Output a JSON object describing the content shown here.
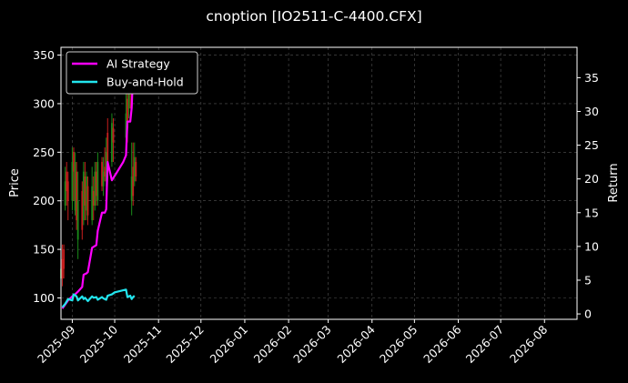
{
  "chart_data": {
    "type": "line",
    "title": "cnoption [IO2511-C-4400.CFX]",
    "xlabel": "",
    "ylabel_left": "Price",
    "ylabel_right": "Return",
    "xlim": [
      "2025-08-24",
      "2026-08-24"
    ],
    "ylim_left": [
      78,
      358
    ],
    "ylim_right": [
      -0.8,
      39.5
    ],
    "x_ticks": [
      "2025-09",
      "2025-10",
      "2025-11",
      "2025-12",
      "2026-01",
      "2026-02",
      "2026-03",
      "2026-04",
      "2026-05",
      "2026-06",
      "2026-07",
      "2026-08"
    ],
    "y_ticks_left": [
      100,
      150,
      200,
      250,
      300,
      350
    ],
    "y_ticks_right": [
      0,
      5,
      10,
      15,
      20,
      25,
      30,
      35
    ],
    "grid": true,
    "legend_position": "top-left",
    "colors": {
      "background": "#000000",
      "grid": "#555555",
      "ai_strategy": "#ff00ff",
      "buy_and_hold": "#22e5ee",
      "candle_up": "#1a8c1a",
      "candle_down": "#c81e1e"
    },
    "series": [
      {
        "name": "AI Strategy",
        "axis": "right",
        "points": [
          [
            "2025-08-25",
            0.8
          ],
          [
            "2025-08-27",
            1.4
          ],
          [
            "2025-08-29",
            2.0
          ],
          [
            "2025-09-01",
            2.6
          ],
          [
            "2025-09-03",
            2.9
          ],
          [
            "2025-09-05",
            3.3
          ],
          [
            "2025-09-08",
            4.0
          ],
          [
            "2025-09-09",
            5.8
          ],
          [
            "2025-09-11",
            6.0
          ],
          [
            "2025-09-12",
            6.2
          ],
          [
            "2025-09-15",
            9.8
          ],
          [
            "2025-09-18",
            10.2
          ],
          [
            "2025-09-19",
            12.3
          ],
          [
            "2025-09-22",
            15.0
          ],
          [
            "2025-09-24",
            15.0
          ],
          [
            "2025-09-25",
            15.5
          ],
          [
            "2025-09-26",
            22.5
          ],
          [
            "2025-09-29",
            19.8
          ],
          [
            "2025-10-02",
            20.8
          ],
          [
            "2025-10-07",
            22.5
          ],
          [
            "2025-10-09",
            23.5
          ],
          [
            "2025-10-10",
            28.5
          ],
          [
            "2025-10-12",
            28.5
          ],
          [
            "2025-10-13",
            30.5
          ],
          [
            "2025-10-14",
            36.0
          ],
          [
            "2025-10-15",
            38.0
          ]
        ]
      },
      {
        "name": "Buy-and-Hold",
        "axis": "right",
        "points": [
          [
            "2025-08-25",
            1.0
          ],
          [
            "2025-08-27",
            1.5
          ],
          [
            "2025-08-29",
            2.2
          ],
          [
            "2025-09-01",
            2.0
          ],
          [
            "2025-09-02",
            2.9
          ],
          [
            "2025-09-04",
            2.6
          ],
          [
            "2025-09-05",
            2.0
          ],
          [
            "2025-09-08",
            2.6
          ],
          [
            "2025-09-09",
            2.2
          ],
          [
            "2025-09-10",
            2.4
          ],
          [
            "2025-09-12",
            1.9
          ],
          [
            "2025-09-15",
            2.6
          ],
          [
            "2025-09-16",
            2.4
          ],
          [
            "2025-09-18",
            2.5
          ],
          [
            "2025-09-19",
            2.1
          ],
          [
            "2025-09-22",
            2.5
          ],
          [
            "2025-09-23",
            2.3
          ],
          [
            "2025-09-25",
            2.1
          ],
          [
            "2025-09-26",
            2.7
          ],
          [
            "2025-09-29",
            2.9
          ],
          [
            "2025-10-01",
            3.2
          ],
          [
            "2025-10-07",
            3.5
          ],
          [
            "2025-10-09",
            3.6
          ],
          [
            "2025-10-10",
            2.5
          ],
          [
            "2025-10-12",
            2.7
          ],
          [
            "2025-10-13",
            2.2
          ],
          [
            "2025-10-14",
            2.5
          ],
          [
            "2025-10-15",
            2.7
          ]
        ]
      }
    ],
    "candles": [
      {
        "date": "2025-08-24",
        "open": 120,
        "close": 130,
        "high": 138,
        "low": 110
      },
      {
        "date": "2025-08-25",
        "open": 140,
        "close": 120,
        "high": 155,
        "low": 112
      },
      {
        "date": "2025-08-26",
        "open": 150,
        "close": 130,
        "high": 155,
        "low": 120
      },
      {
        "date": "2025-08-27",
        "open": 195,
        "close": 220,
        "high": 235,
        "low": 190
      },
      {
        "date": "2025-08-28",
        "open": 230,
        "close": 210,
        "high": 240,
        "low": 195
      },
      {
        "date": "2025-08-29",
        "open": 220,
        "close": 200,
        "high": 230,
        "low": 180
      },
      {
        "date": "2025-09-01",
        "open": 200,
        "close": 240,
        "high": 255,
        "low": 190
      },
      {
        "date": "2025-09-02",
        "open": 250,
        "close": 230,
        "high": 255,
        "low": 200
      },
      {
        "date": "2025-09-03",
        "open": 190,
        "close": 240,
        "high": 250,
        "low": 185
      },
      {
        "date": "2025-09-04",
        "open": 230,
        "close": 180,
        "high": 240,
        "low": 170
      },
      {
        "date": "2025-09-05",
        "open": 160,
        "close": 200,
        "high": 230,
        "low": 140
      },
      {
        "date": "2025-09-08",
        "open": 210,
        "close": 170,
        "high": 220,
        "low": 160
      },
      {
        "date": "2025-09-09",
        "open": 180,
        "close": 230,
        "high": 240,
        "low": 175
      },
      {
        "date": "2025-09-10",
        "open": 225,
        "close": 195,
        "high": 240,
        "low": 180
      },
      {
        "date": "2025-09-11",
        "open": 190,
        "close": 225,
        "high": 230,
        "low": 180
      },
      {
        "date": "2025-09-12",
        "open": 215,
        "close": 185,
        "high": 225,
        "low": 175
      },
      {
        "date": "2025-09-15",
        "open": 180,
        "close": 215,
        "high": 235,
        "low": 175
      },
      {
        "date": "2025-09-16",
        "open": 210,
        "close": 195,
        "high": 225,
        "low": 180
      },
      {
        "date": "2025-09-17",
        "open": 195,
        "close": 230,
        "high": 240,
        "low": 190
      },
      {
        "date": "2025-09-18",
        "open": 230,
        "close": 205,
        "high": 240,
        "low": 195
      },
      {
        "date": "2025-09-19",
        "open": 200,
        "close": 240,
        "high": 250,
        "low": 195
      },
      {
        "date": "2025-09-22",
        "open": 240,
        "close": 215,
        "high": 245,
        "low": 210
      },
      {
        "date": "2025-09-23",
        "open": 215,
        "close": 230,
        "high": 245,
        "low": 205
      },
      {
        "date": "2025-09-24",
        "open": 235,
        "close": 225,
        "high": 255,
        "low": 220
      },
      {
        "date": "2025-09-25",
        "open": 220,
        "close": 250,
        "high": 265,
        "low": 215
      },
      {
        "date": "2025-09-26",
        "open": 270,
        "close": 240,
        "high": 285,
        "low": 225
      },
      {
        "date": "2025-09-29",
        "open": 240,
        "close": 280,
        "high": 290,
        "low": 235
      },
      {
        "date": "2025-09-30",
        "open": 275,
        "close": 260,
        "high": 285,
        "low": 240
      },
      {
        "date": "2025-10-09",
        "open": 265,
        "close": 290,
        "high": 310,
        "low": 255
      },
      {
        "date": "2025-10-10",
        "open": 305,
        "close": 275,
        "high": 330,
        "low": 260
      },
      {
        "date": "2025-10-11",
        "open": 295,
        "close": 335,
        "high": 340,
        "low": 285
      },
      {
        "date": "2025-10-12",
        "open": 330,
        "close": 310,
        "high": 345,
        "low": 295
      },
      {
        "date": "2025-10-13",
        "open": 200,
        "close": 225,
        "high": 260,
        "low": 185
      },
      {
        "date": "2025-10-14",
        "open": 235,
        "close": 205,
        "high": 260,
        "low": 195
      },
      {
        "date": "2025-10-15",
        "open": 220,
        "close": 245,
        "high": 260,
        "low": 215
      },
      {
        "date": "2025-10-16",
        "open": 240,
        "close": 225,
        "high": 245,
        "low": 220
      }
    ]
  }
}
